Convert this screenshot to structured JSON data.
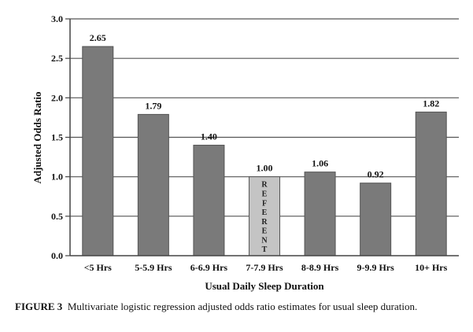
{
  "chart_data": {
    "type": "bar",
    "title": "",
    "xlabel": "Usual Daily Sleep Duration",
    "ylabel": "Adjusted Odds Ratio",
    "ylim": [
      0,
      3.0
    ],
    "yticks": [
      "0.0",
      "0.5",
      "1.0",
      "1.5",
      "2.0",
      "2.5",
      "3.0"
    ],
    "ytick_values": [
      0,
      0.5,
      1.0,
      1.5,
      2.0,
      2.5,
      3.0
    ],
    "grid": true,
    "categories": [
      "<5 Hrs",
      "5-5.9 Hrs",
      "6-6.9 Hrs",
      "7-7.9 Hrs",
      "8-8.9 Hrs",
      "9-9.9 Hrs",
      "10+ Hrs"
    ],
    "values": [
      2.65,
      1.79,
      1.4,
      1.0,
      1.06,
      0.92,
      1.82
    ],
    "data_labels": [
      "2.65",
      "1.79",
      "1.40",
      "1.00",
      "1.06",
      "0.92",
      "1.82"
    ],
    "referent_index": 3,
    "referent_label": "REFERENT",
    "colors": {
      "bar": "#7a7a7a",
      "referent_bar": "#c4c4c4",
      "grid": "#555555"
    }
  },
  "caption": {
    "label": "FIGURE 3",
    "text": "Multivariate logistic regression adjusted odds ratio estimates for usual sleep duration."
  }
}
